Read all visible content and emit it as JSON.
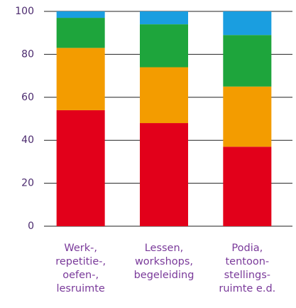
{
  "chart_data": {
    "type": "stacked_bar",
    "categories": [
      "Werk-,\nrepetitie-,\noefen-,\nlesruimte",
      "Lessen,\nworkshops,\nbegeleiding",
      "Podia,\ntentoon-\nstellings-\nruimte e.d."
    ],
    "series": [
      {
        "color": "#e2001a",
        "values": [
          54,
          48,
          37
        ]
      },
      {
        "color": "#f39c00",
        "values": [
          29,
          26,
          28
        ]
      },
      {
        "color": "#1ea53c",
        "values": [
          14,
          20,
          24
        ]
      },
      {
        "color": "#1a9ee0",
        "values": [
          3,
          6,
          11
        ]
      }
    ],
    "ylim": [
      0,
      100
    ],
    "yticks": [
      0,
      20,
      40,
      60,
      80,
      100
    ],
    "grid": true
  }
}
